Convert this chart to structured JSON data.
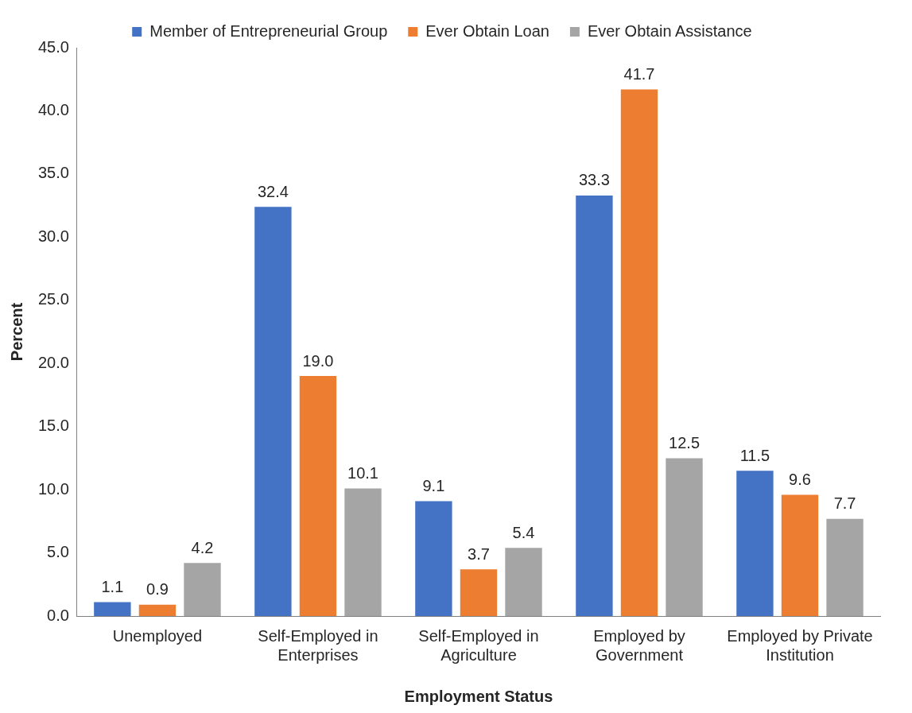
{
  "chart_data": {
    "type": "bar",
    "xlabel": "Employment Status",
    "ylabel": "Percent",
    "categories": [
      "Unemployed",
      "Self-Employed in Enterprises",
      "Self-Employed in Agriculture",
      "Employed by Government",
      "Employed by Private Institution"
    ],
    "series": [
      {
        "name": "Member of Entrepreneurial Group",
        "color": "#4472c4",
        "values": [
          1.1,
          32.4,
          9.1,
          33.3,
          11.5
        ],
        "value_labels": [
          "1.1",
          "32.4",
          "9.1",
          "33.3",
          "11.5"
        ]
      },
      {
        "name": "Ever Obtain Loan",
        "color": "#ed7d31",
        "values": [
          0.9,
          19.0,
          3.7,
          41.7,
          9.6
        ],
        "value_labels": [
          "0.9",
          "19.0",
          "3.7",
          "41.7",
          "9.6"
        ]
      },
      {
        "name": "Ever Obtain Assistance",
        "color": "#a5a5a5",
        "values": [
          4.2,
          10.1,
          5.4,
          12.5,
          7.7
        ],
        "value_labels": [
          "4.2",
          "10.1",
          "5.4",
          "12.5",
          "7.7"
        ]
      }
    ],
    "ylim": [
      0,
      45
    ],
    "yticks": [
      {
        "value": 0,
        "label": "0.0"
      },
      {
        "value": 5,
        "label": "5.0"
      },
      {
        "value": 10,
        "label": "10.0"
      },
      {
        "value": 15,
        "label": "15.0"
      },
      {
        "value": 20,
        "label": "20.0"
      },
      {
        "value": 25,
        "label": "25.0"
      },
      {
        "value": 30,
        "label": "30.0"
      },
      {
        "value": 35,
        "label": "35.0"
      },
      {
        "value": 40,
        "label": "40.0"
      },
      {
        "value": 45,
        "label": "45.0"
      }
    ],
    "grid": false,
    "legend": "top"
  }
}
